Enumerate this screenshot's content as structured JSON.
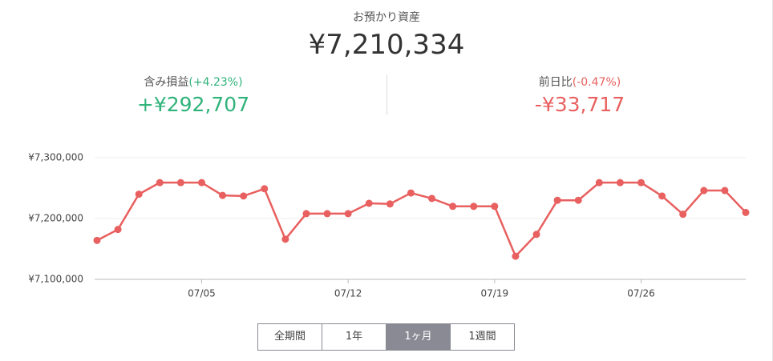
{
  "summary": {
    "label": "お預かり資産",
    "value": "¥7,210,334"
  },
  "gain": {
    "label": "含み損益",
    "rate": "(+4.23%)",
    "value": "+¥292,707"
  },
  "day_change": {
    "label": "前日比",
    "rate": "(-0.47%)",
    "value": "-¥33,717"
  },
  "periods": [
    "全期間",
    "1年",
    "1ヶ月",
    "1週間"
  ],
  "active_period": "1ヶ月",
  "chart_data": {
    "type": "line",
    "color": "#e8605f",
    "grid": true,
    "categories": [
      null,
      null,
      null,
      null,
      null,
      "07/05",
      null,
      null,
      null,
      null,
      null,
      null,
      "07/12",
      null,
      null,
      null,
      null,
      null,
      null,
      "07/19",
      null,
      null,
      null,
      null,
      null,
      null,
      "07/26",
      null,
      null,
      null,
      null,
      null
    ],
    "values": [
      7164000,
      7182000,
      7240000,
      7259000,
      7259000,
      7259000,
      7238000,
      7237000,
      7249000,
      7166000,
      7208000,
      7208000,
      7208000,
      7225000,
      7224000,
      7242000,
      7233000,
      7220000,
      7220000,
      7220000,
      7138000,
      7174000,
      7230000,
      7230000,
      7259000,
      7259000,
      7259000,
      7237000,
      7207000,
      7246000,
      7246000,
      7210000
    ],
    "ylim": [
      7100000,
      7300000
    ],
    "yticks": [
      {
        "value": 7100000,
        "label": "¥7,100,000"
      },
      {
        "value": 7200000,
        "label": "¥7,200,000"
      },
      {
        "value": 7300000,
        "label": "¥7,300,000"
      }
    ]
  }
}
